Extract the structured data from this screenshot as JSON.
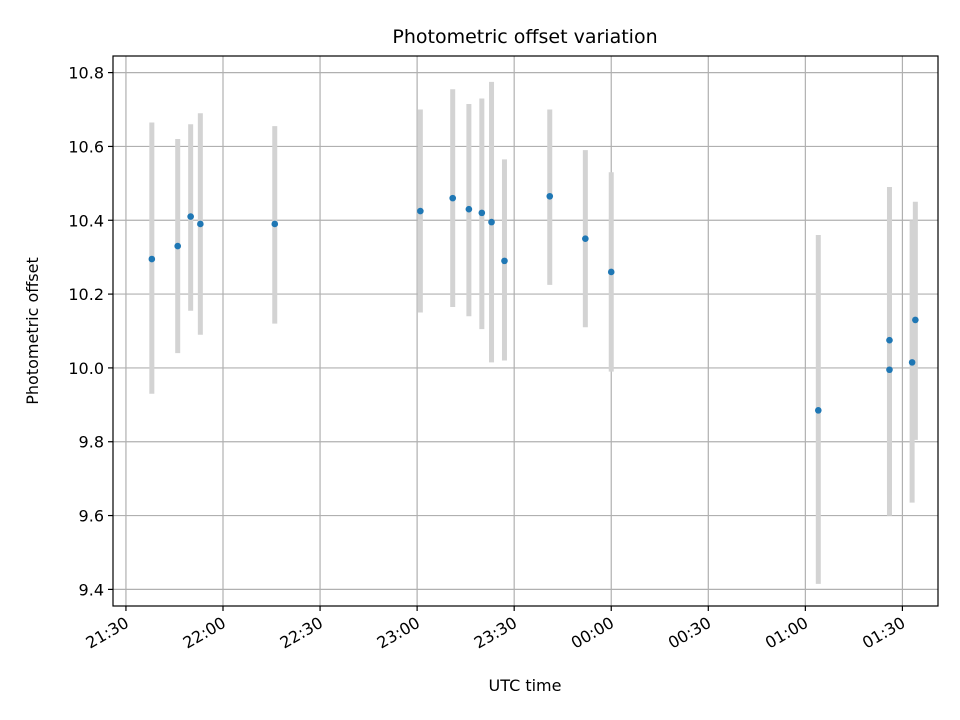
{
  "chart_data": {
    "type": "scatter",
    "title": "Photometric offset variation",
    "xlabel": "UTC time",
    "ylabel": "Photometric offset",
    "x_axis_kind": "time",
    "xlim": [
      "21:26",
      "01:41"
    ],
    "ylim": [
      9.355,
      10.845
    ],
    "x_ticks": [
      "21:30",
      "22:00",
      "22:30",
      "23:00",
      "23:30",
      "00:00",
      "00:30",
      "01:00",
      "01:30"
    ],
    "y_ticks": [
      9.4,
      9.6,
      9.8,
      10.0,
      10.2,
      10.4,
      10.6,
      10.8
    ],
    "y_tick_labels": [
      "9.4",
      "9.6",
      "9.8",
      "10.0",
      "10.2",
      "10.4",
      "10.6",
      "10.8"
    ],
    "grid": true,
    "point_color": "#1f77b4",
    "errorbar_color": "#d3d3d3",
    "points": [
      {
        "x": "21:38",
        "y": 10.295,
        "low": 9.93,
        "high": 10.665
      },
      {
        "x": "21:46",
        "y": 10.33,
        "low": 10.04,
        "high": 10.62
      },
      {
        "x": "21:50",
        "y": 10.41,
        "low": 10.155,
        "high": 10.66
      },
      {
        "x": "21:53",
        "y": 10.39,
        "low": 10.09,
        "high": 10.69
      },
      {
        "x": "22:16",
        "y": 10.39,
        "low": 10.12,
        "high": 10.655
      },
      {
        "x": "23:01",
        "y": 10.425,
        "low": 10.15,
        "high": 10.7
      },
      {
        "x": "23:11",
        "y": 10.46,
        "low": 10.165,
        "high": 10.755
      },
      {
        "x": "23:16",
        "y": 10.43,
        "low": 10.14,
        "high": 10.715
      },
      {
        "x": "23:20",
        "y": 10.42,
        "low": 10.105,
        "high": 10.73
      },
      {
        "x": "23:23",
        "y": 10.395,
        "low": 10.015,
        "high": 10.775
      },
      {
        "x": "23:27",
        "y": 10.29,
        "low": 10.02,
        "high": 10.565
      },
      {
        "x": "23:41",
        "y": 10.465,
        "low": 10.225,
        "high": 10.7
      },
      {
        "x": "23:52",
        "y": 10.35,
        "low": 10.11,
        "high": 10.59
      },
      {
        "x": "00:00",
        "y": 10.26,
        "low": 9.99,
        "high": 10.53
      },
      {
        "x": "01:04",
        "y": 9.885,
        "low": 9.415,
        "high": 10.36
      },
      {
        "x": "01:26",
        "y": 9.995,
        "low": 9.6,
        "high": 10.39
      },
      {
        "x": "01:26",
        "y": 10.075,
        "low": 9.655,
        "high": 10.49
      },
      {
        "x": "01:33",
        "y": 10.015,
        "low": 9.635,
        "high": 10.4
      },
      {
        "x": "01:34",
        "y": 10.13,
        "low": 9.805,
        "high": 10.45
      }
    ]
  }
}
